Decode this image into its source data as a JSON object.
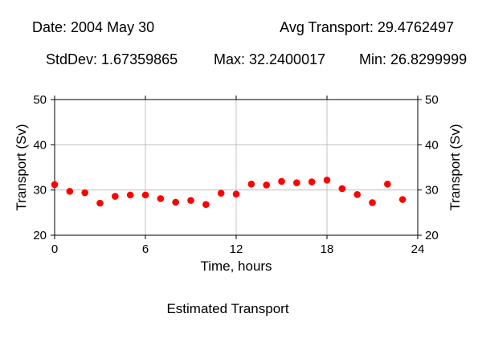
{
  "header": {
    "date_text": "Date: 2004 May 30",
    "avg_text": "Avg Transport: 29.4762497",
    "stddev_text": "StdDev: 1.67359865",
    "max_text": "Max: 32.2400017",
    "min_text": "Min: 26.8299999"
  },
  "caption": "Estimated Transport",
  "chart_data": {
    "type": "scatter",
    "xlabel": "Time, hours",
    "ylabel": "Transport (Sv)",
    "y2label": "Transport (Sv)",
    "xlim": [
      0,
      24
    ],
    "ylim": [
      20,
      50
    ],
    "xticks": [
      0,
      6,
      12,
      18,
      24
    ],
    "yticks": [
      20,
      30,
      40,
      50
    ],
    "grid": true,
    "marker_color": "#ff0000",
    "series": [
      {
        "x": [
          0,
          1,
          2,
          3,
          4,
          5,
          6,
          7,
          8,
          9,
          10,
          11,
          12,
          13,
          14,
          15,
          16,
          17,
          18,
          19,
          20,
          21,
          22,
          23
        ],
        "y": [
          31.2,
          29.7,
          29.4,
          27.1,
          28.6,
          28.9,
          28.9,
          28.1,
          27.3,
          27.7,
          26.8,
          29.3,
          29.1,
          31.3,
          31.1,
          31.9,
          31.6,
          31.8,
          32.2,
          30.3,
          29.0,
          27.2,
          31.3,
          27.9
        ]
      }
    ]
  }
}
